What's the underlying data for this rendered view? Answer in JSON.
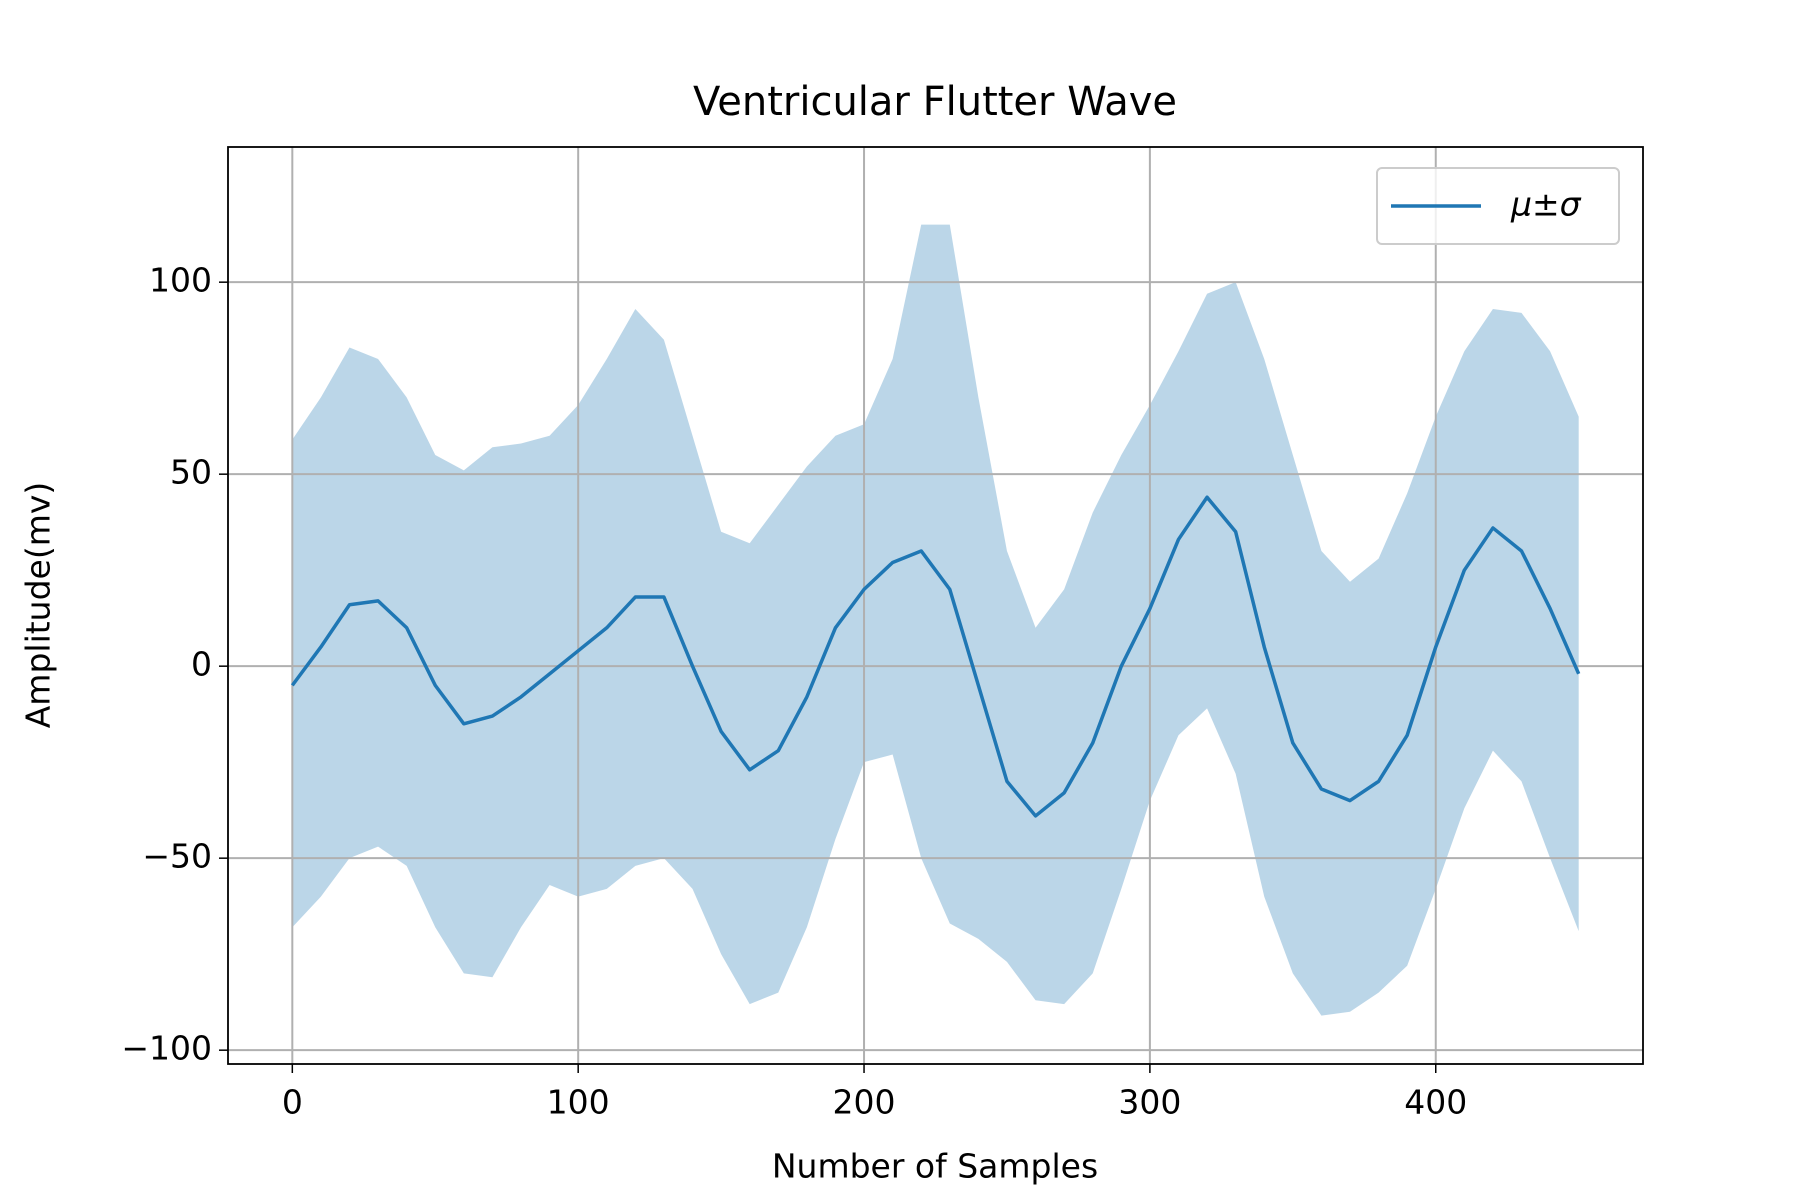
{
  "chart_data": {
    "type": "line",
    "title": "Ventricular Flutter Wave",
    "x_label": "Number of Samples",
    "y_label": "Amplitude(mv)",
    "x": [
      0,
      10,
      20,
      30,
      40,
      50,
      60,
      70,
      80,
      90,
      100,
      110,
      120,
      130,
      140,
      150,
      160,
      170,
      180,
      190,
      200,
      210,
      220,
      230,
      240,
      250,
      260,
      270,
      280,
      290,
      300,
      310,
      320,
      330,
      340,
      350,
      360,
      370,
      380,
      390,
      400,
      410,
      420,
      430,
      440,
      450
    ],
    "series": [
      {
        "name": "μ±σ",
        "color": "#1f77b4",
        "band_color": "#1f77b4",
        "values": [
          -5,
          5,
          16,
          17,
          10,
          -5,
          -15,
          -13,
          -8,
          -2,
          4,
          10,
          18,
          18,
          0,
          -17,
          -27,
          -22,
          -8,
          10,
          20,
          27,
          30,
          20,
          -5,
          -30,
          -39,
          -33,
          -20,
          0,
          15,
          33,
          44,
          35,
          5,
          -20,
          -32,
          -35,
          -30,
          -18,
          5,
          25,
          36,
          30,
          15,
          -2
        ],
        "upper": [
          59,
          70,
          83,
          80,
          70,
          55,
          51,
          57,
          58,
          60,
          68,
          80,
          93,
          85,
          60,
          35,
          32,
          42,
          52,
          60,
          63,
          80,
          115,
          115,
          70,
          30,
          10,
          20,
          40,
          55,
          68,
          82,
          97,
          100,
          80,
          55,
          30,
          22,
          28,
          45,
          65,
          82,
          93,
          92,
          82,
          65
        ],
        "lower": [
          -68,
          -60,
          -50,
          -47,
          -52,
          -68,
          -80,
          -81,
          -68,
          -57,
          -60,
          -58,
          -52,
          -50,
          -58,
          -75,
          -88,
          -85,
          -68,
          -45,
          -25,
          -23,
          -50,
          -67,
          -71,
          -77,
          -87,
          -88,
          -80,
          -58,
          -35,
          -18,
          -11,
          -28,
          -60,
          -80,
          -91,
          -90,
          -85,
          -78,
          -58,
          -37,
          -22,
          -30,
          -50,
          -69
        ]
      }
    ],
    "xlim": [
      -22.5,
      472.5
    ],
    "xticks": [
      0,
      100,
      200,
      300,
      400
    ],
    "ylim": [
      -103.6,
      135.2
    ],
    "yticks": [
      {
        "value": -100,
        "label": "−100"
      },
      {
        "value": -50,
        "label": "−50"
      },
      0,
      50,
      100
    ],
    "grid": true,
    "legend": "upper right"
  }
}
